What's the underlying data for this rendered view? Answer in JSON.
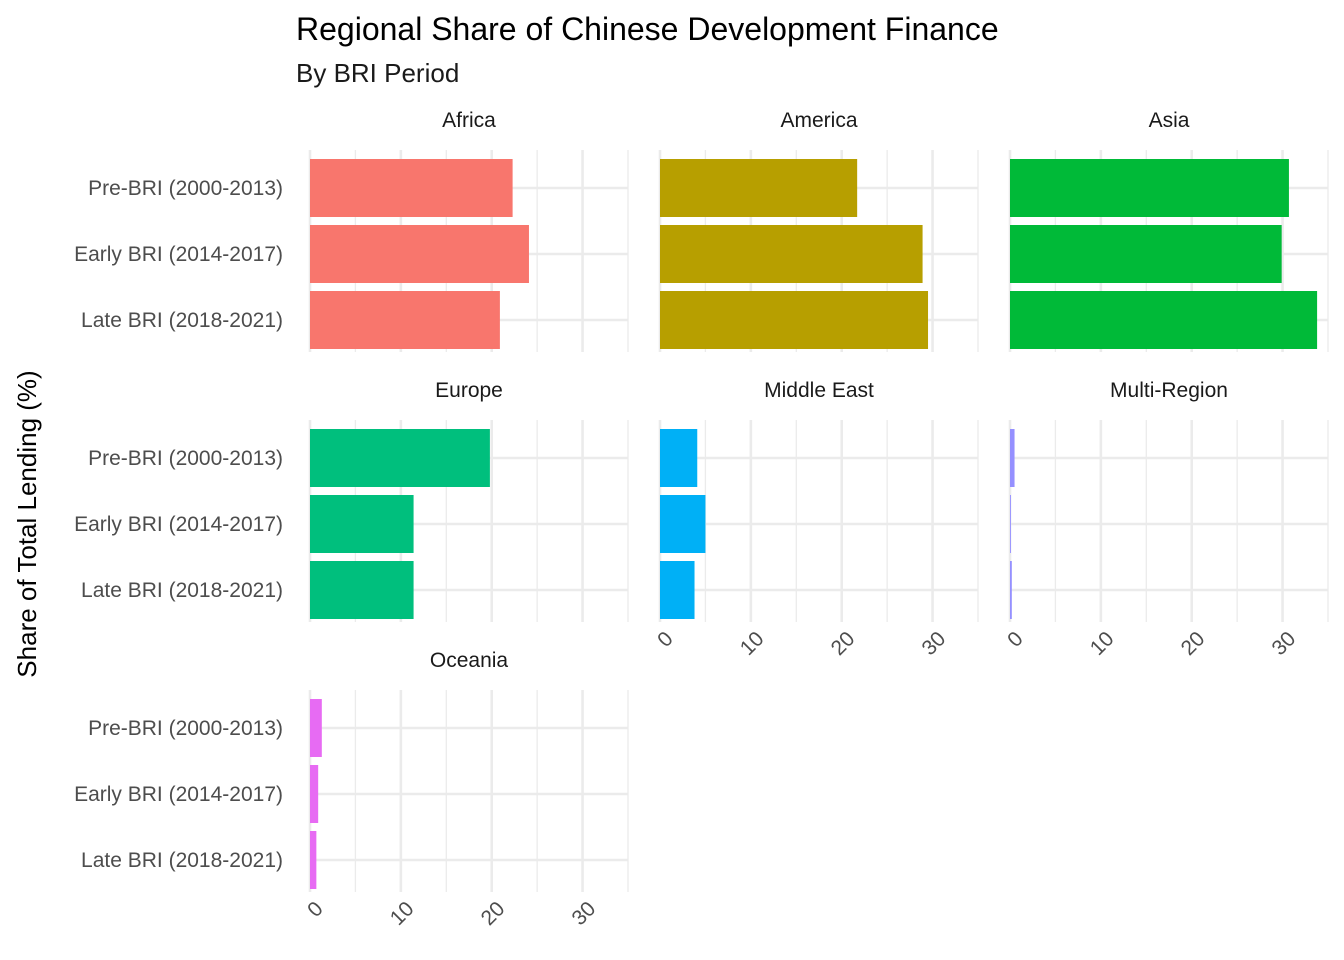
{
  "chart_data": {
    "type": "bar",
    "orientation": "horizontal",
    "title": "Regional Share of Chinese Development Finance",
    "subtitle": "By BRI Period",
    "xlabel": "",
    "ylabel": "Share of Total Lending (%)",
    "categories": [
      "Pre-BRI (2000-2013)",
      "Early BRI (2014-2017)",
      "Late BRI (2018-2021)"
    ],
    "x_ticks": [
      "0",
      "10",
      "20",
      "30"
    ],
    "xlim": [
      0,
      35
    ],
    "grid": true,
    "legend": "none",
    "facets": [
      {
        "name": "Africa",
        "color": "#F8766D",
        "values": [
          22.3,
          24.1,
          20.9
        ]
      },
      {
        "name": "America",
        "color": "#B79F00",
        "values": [
          21.7,
          28.9,
          29.5
        ]
      },
      {
        "name": "Asia",
        "color": "#00BA38",
        "values": [
          30.7,
          29.9,
          33.8
        ]
      },
      {
        "name": "Europe",
        "color": "#00BF7D",
        "values": [
          19.8,
          11.4,
          11.4
        ]
      },
      {
        "name": "Middle East",
        "color": "#00B0F6",
        "values": [
          4.1,
          5.0,
          3.8
        ]
      },
      {
        "name": "Multi-Region",
        "color": "#9590FF",
        "values": [
          0.5,
          0.1,
          0.2
        ]
      },
      {
        "name": "Oceania",
        "color": "#E76BF3",
        "values": [
          1.3,
          0.9,
          0.7
        ]
      }
    ]
  }
}
